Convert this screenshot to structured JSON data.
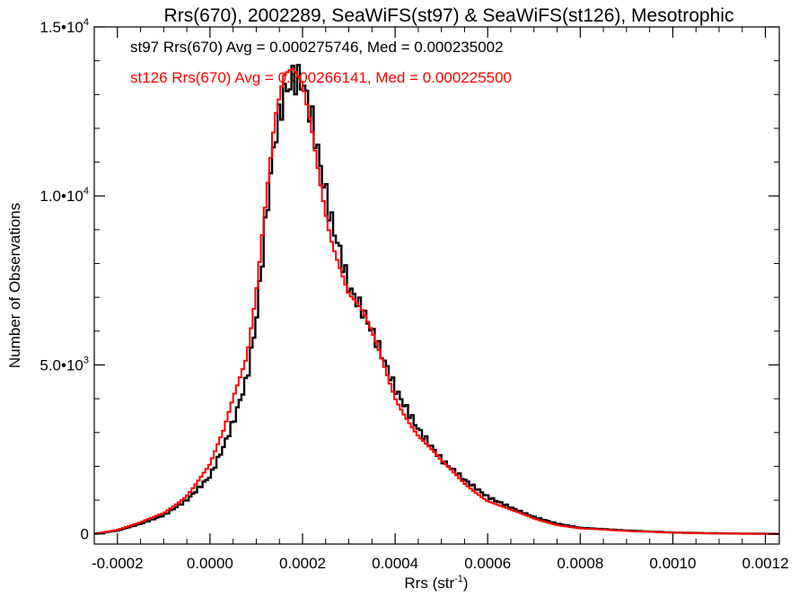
{
  "chart_data": {
    "type": "line",
    "title": "Rrs(670), 2002289, SeaWiFS(st97) & SeaWiFS(st126), Mesotrophic",
    "xlabel_main": "Rrs (str",
    "xlabel_sup": "-1",
    "xlabel_end": ")",
    "ylabel": "Number of Observations",
    "xlim": [
      -0.00025,
      0.00123
    ],
    "ylim": [
      -300,
      15000
    ],
    "x_ticks": [
      {
        "value": -0.0002,
        "label": "-0.0002"
      },
      {
        "value": 0.0,
        "label": "0.0000"
      },
      {
        "value": 0.0002,
        "label": "0.0002"
      },
      {
        "value": 0.0004,
        "label": "0.0004"
      },
      {
        "value": 0.0006,
        "label": "0.0006"
      },
      {
        "value": 0.0008,
        "label": "0.0008"
      },
      {
        "value": 0.001,
        "label": "0.0010"
      },
      {
        "value": 0.0012,
        "label": "0.0012"
      }
    ],
    "y_ticks": [
      {
        "value": 0,
        "label": "0",
        "sup": ""
      },
      {
        "value": 5000,
        "label": "5.0•10",
        "sup": "3"
      },
      {
        "value": 10000,
        "label": "1.0•10",
        "sup": "4"
      },
      {
        "value": 15000,
        "label": "1.5•10",
        "sup": "4"
      }
    ],
    "grid": false,
    "annotations": [
      {
        "text": "st97 Rrs(670) Avg = 0.000275746, Med = 0.000235002",
        "color": "#000000"
      },
      {
        "text": "st126 Rrs(670) Avg = 0.000266141, Med = 0.000225500",
        "color": "#ff0000"
      }
    ],
    "series": [
      {
        "name": "st97",
        "color": "#000000",
        "x": [
          -0.00025,
          -0.0002,
          -0.00015,
          -0.0001,
          -5e-05,
          0.0,
          3e-05,
          5e-05,
          8e-05,
          0.0001,
          0.00012,
          0.00014,
          0.00016,
          0.00018,
          0.0002,
          0.00022,
          0.00024,
          0.00026,
          0.00028,
          0.0003,
          0.00033,
          0.00036,
          0.0004,
          0.00045,
          0.0005,
          0.00055,
          0.0006,
          0.00065,
          0.0007,
          0.00075,
          0.0008,
          0.0009,
          0.001,
          0.0011,
          0.00123
        ],
        "y": [
          0,
          100,
          300,
          550,
          1000,
          1700,
          2600,
          3300,
          4600,
          6300,
          9200,
          11700,
          13000,
          13500,
          13400,
          12300,
          10800,
          9400,
          8400,
          7300,
          6600,
          5700,
          4300,
          3100,
          2200,
          1600,
          1100,
          780,
          500,
          300,
          180,
          100,
          40,
          15,
          0
        ]
      },
      {
        "name": "st126",
        "color": "#ff0000",
        "x": [
          -0.00025,
          -0.0002,
          -0.00015,
          -0.0001,
          -5e-05,
          0.0,
          3e-05,
          5e-05,
          8e-05,
          0.0001,
          0.00012,
          0.00014,
          0.00016,
          0.00018,
          0.0002,
          0.00022,
          0.00024,
          0.00026,
          0.00028,
          0.0003,
          0.00033,
          0.00036,
          0.0004,
          0.00045,
          0.0005,
          0.00055,
          0.0006,
          0.00065,
          0.0007,
          0.00075,
          0.0008,
          0.0009,
          0.001,
          0.0011,
          0.00123
        ],
        "y": [
          0,
          120,
          330,
          620,
          1150,
          2000,
          3000,
          4000,
          5400,
          7400,
          10000,
          12200,
          13200,
          13300,
          13000,
          12000,
          10500,
          9100,
          8100,
          7100,
          6400,
          5500,
          4100,
          2950,
          2100,
          1500,
          1000,
          700,
          450,
          270,
          160,
          90,
          35,
          12,
          0
        ]
      }
    ]
  }
}
